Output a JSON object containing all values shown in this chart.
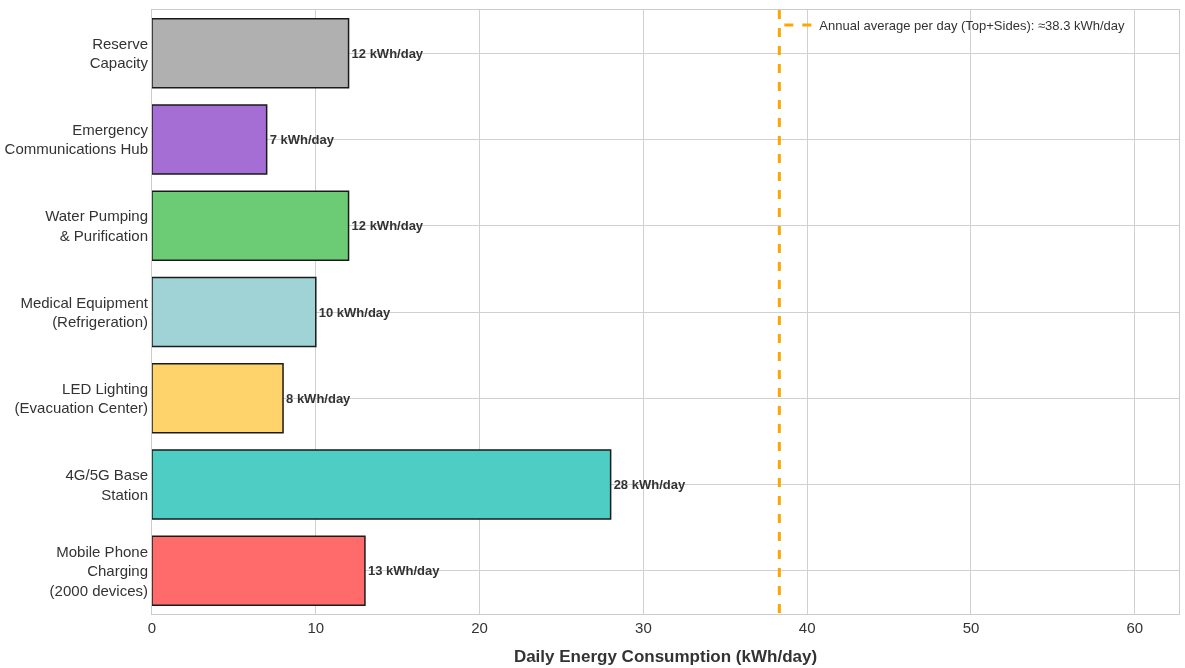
{
  "chart_data": {
    "type": "bar",
    "orientation": "horizontal",
    "xlabel": "Daily Energy Consumption (kWh/day)",
    "categories": [
      "Reserve\nCapacity",
      "Emergency\nCommunications Hub",
      "Water Pumping\n& Purification",
      "Medical Equipment\n(Refrigeration)",
      "LED Lighting\n(Evacuation Center)",
      "4G/5G Base\nStation",
      "Mobile Phone\nCharging\n(2000 devices)"
    ],
    "values": [
      12,
      7,
      12,
      10,
      8,
      28,
      13
    ],
    "colors": [
      "#b0b0b0",
      "#a56ed4",
      "#6ccc76",
      "#9fd3d6",
      "#ffd36b",
      "#4ecdc4",
      "#ff6b6b"
    ],
    "value_labels": [
      "12 kWh/day",
      "7 kWh/day",
      "12 kWh/day",
      "10 kWh/day",
      "8 kWh/day",
      "28 kWh/day",
      "13 kWh/day"
    ],
    "xlim": [
      0,
      62.7
    ],
    "xticks": [
      0,
      10,
      20,
      30,
      40,
      50,
      60
    ],
    "grid": true,
    "legend": "top right",
    "ref_lines": [
      {
        "axis": "x",
        "value": 38.3,
        "label": "Annual average per day (Top+Sides): ≈38.3 kWh/day",
        "color": "#ffa500",
        "line_style": "dashed"
      }
    ]
  }
}
